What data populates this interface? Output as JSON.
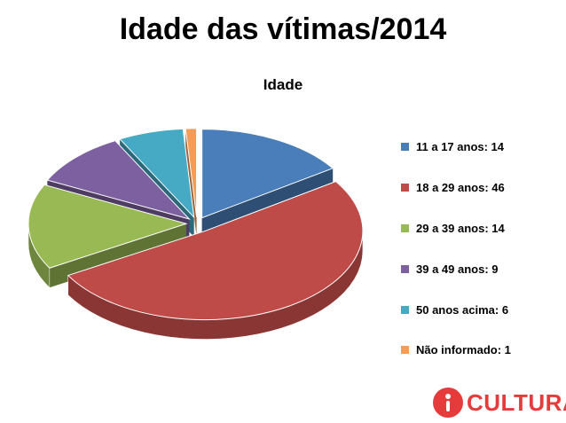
{
  "chart_data": {
    "type": "pie",
    "title": "Idade das vítimas/2014",
    "subtitle": "Idade",
    "categories": [
      "11 a 17 anos",
      "18 a 29 anos",
      "29 a 39 anos",
      "39 a 49 anos",
      "50 anos acima",
      "Não informado"
    ],
    "values": [
      14,
      46,
      14,
      9,
      6,
      1
    ],
    "legend_labels": [
      "11 a 17 anos: 14",
      "18 a 29 anos: 46",
      "29 a 39 anos: 14",
      "39 a 49 anos: 9",
      "50 anos acima: 6",
      "Não informado: 1"
    ],
    "colors": [
      "#4a7ebb",
      "#be4b48",
      "#98b954",
      "#7d60a0",
      "#46aac5",
      "#f59d56"
    ],
    "style": "3d-exploded",
    "legend_position": "right"
  },
  "brand": {
    "name": "CULTURA",
    "color": "#e63b3b"
  }
}
